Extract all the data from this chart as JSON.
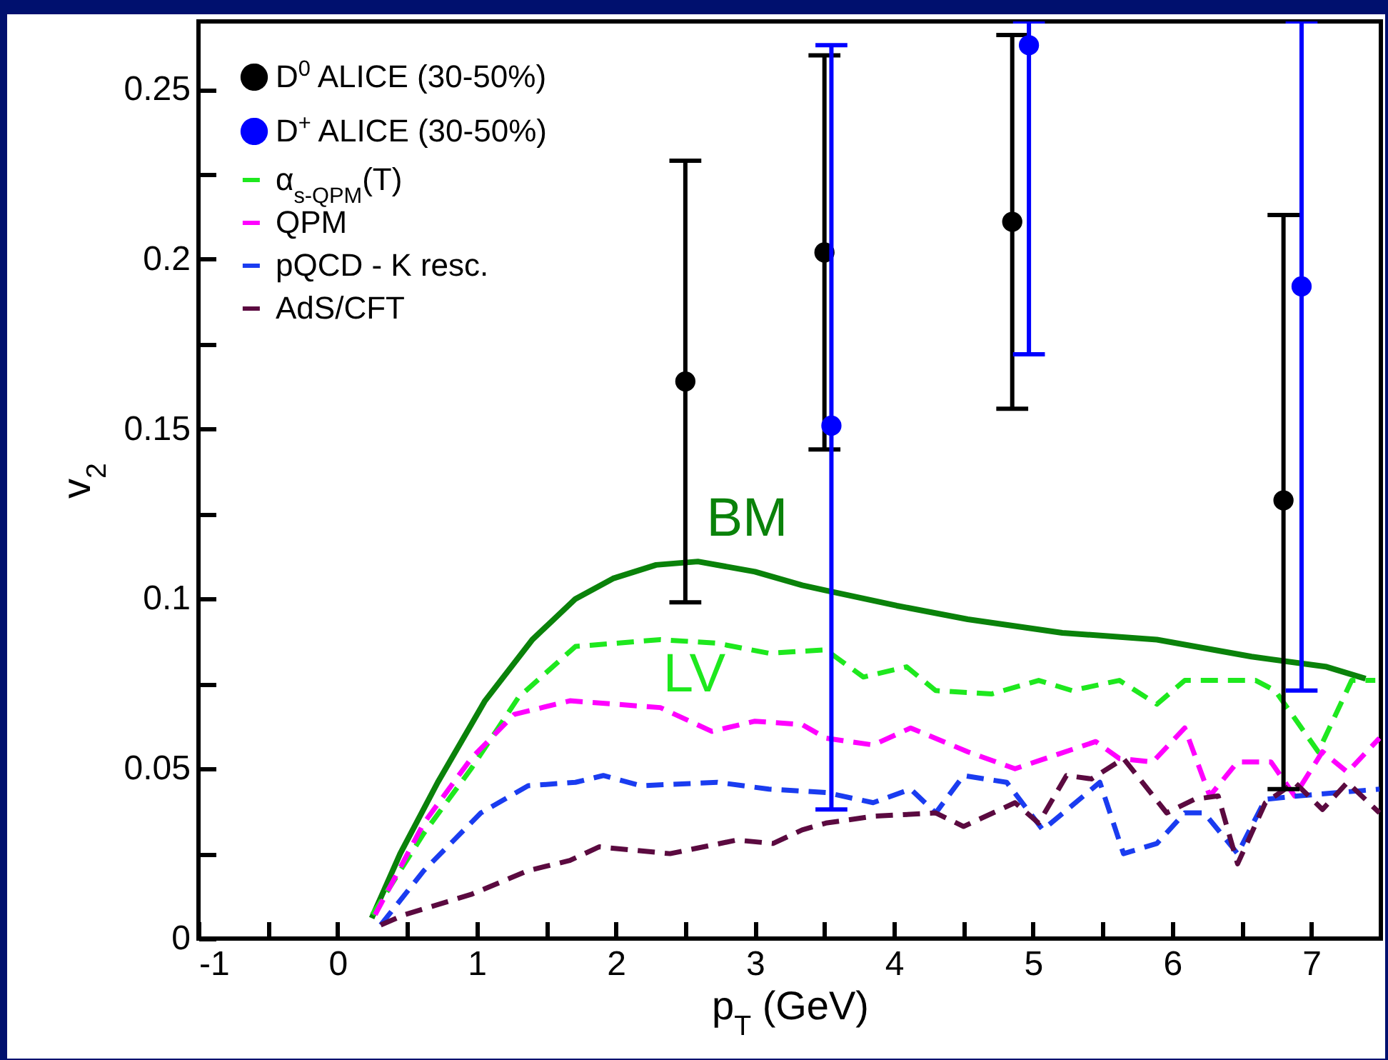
{
  "chart_data": {
    "type": "line",
    "xlabel": "p$_{T}$ (GeV)",
    "ylabel": "v$_{2}$",
    "xlim": [
      -1,
      7.5
    ],
    "xticks": [
      -1,
      {
        "value": -0.5,
        "label": null
      },
      0,
      {
        "value": 0.5,
        "label": null
      },
      1,
      {
        "value": 1.5,
        "label": null
      },
      2,
      {
        "value": 2.5,
        "label": null
      },
      3,
      {
        "value": 3.5,
        "label": null
      },
      4,
      {
        "value": 4.5,
        "label": null
      },
      5,
      {
        "value": 5.5,
        "label": null
      },
      6,
      {
        "value": 6.5,
        "label": null
      },
      7
    ],
    "ylim": [
      0,
      0.27
    ],
    "yticks": [
      0,
      {
        "value": 0.025,
        "label": null
      },
      0.05,
      {
        "value": 0.075,
        "label": null
      },
      0.1,
      {
        "value": 0.125,
        "label": null
      },
      0.15,
      {
        "value": 0.175,
        "label": null
      },
      0.2,
      {
        "value": 0.225,
        "label": null
      },
      0.25
    ],
    "legend": "top left",
    "grid": false,
    "annotations": [
      "BM",
      "LV"
    ],
    "series": [
      {
        "type": "scatter",
        "name": "D$^{0}$ ALICE (30-50%)",
        "color": "#000000",
        "x": [
          2.5,
          3.5,
          4.85,
          6.8
        ],
        "values": [
          0.164,
          0.202,
          0.211,
          0.129
        ],
        "errors": [
          [
            0.099,
            0.229
          ],
          [
            0.144,
            0.26
          ],
          [
            0.156,
            0.266
          ],
          [
            0.044,
            0.213
          ]
        ]
      },
      {
        "type": "scatter",
        "name": "D$^{+}$ ALICE (30-50%)",
        "color": "#0000ff",
        "x": [
          3.55,
          4.97,
          6.93
        ],
        "values": [
          0.151,
          0.263,
          0.192
        ],
        "errors": [
          [
            0.038,
            0.263
          ],
          [
            0.172,
            0.27
          ],
          [
            0.073,
            0.27
          ]
        ]
      },
      {
        "color": "#0a820a",
        "line_style": "solid",
        "x": [
          0.245,
          0.45,
          0.72,
          1.06,
          1.4,
          1.71,
          1.98,
          2.29,
          2.59,
          3.0,
          3.34,
          3.51,
          4.02,
          4.53,
          5.21,
          5.89,
          6.57,
          7.11,
          7.39
        ],
        "values": [
          0.006,
          0.025,
          0.046,
          0.07,
          0.088,
          0.1,
          0.106,
          0.11,
          0.111,
          0.108,
          0.104,
          0.1025,
          0.098,
          0.094,
          0.09,
          0.088,
          0.083,
          0.08,
          0.0765
        ]
      },
      {
        "name": "α$_{s-QPM}$(T)",
        "color": "#1ee81e",
        "line_style": "dashed",
        "x": [
          0.25,
          0.62,
          0.96,
          1.3,
          1.71,
          2.32,
          2.72,
          3.1,
          3.51,
          3.78,
          4.09,
          4.3,
          4.7,
          5.04,
          5.28,
          5.62,
          5.89,
          6.09,
          6.6,
          6.74,
          7.05,
          7.29,
          7.46
        ],
        "values": [
          0.007,
          0.031,
          0.05,
          0.071,
          0.086,
          0.088,
          0.087,
          0.084,
          0.085,
          0.077,
          0.08,
          0.073,
          0.072,
          0.076,
          0.073,
          0.076,
          0.069,
          0.076,
          0.076,
          0.073,
          0.055,
          0.076,
          0.076
        ]
      },
      {
        "name": "QPM",
        "color": "#ff00ff",
        "line_style": "dashed",
        "x": [
          0.27,
          0.62,
          0.96,
          1.27,
          1.67,
          2.32,
          2.69,
          3.0,
          3.34,
          3.51,
          3.85,
          4.12,
          4.53,
          4.87,
          5.45,
          5.62,
          5.86,
          6.09,
          6.27,
          6.47,
          6.71,
          6.88,
          7.08,
          7.26,
          7.49
        ],
        "values": [
          0.007,
          0.034,
          0.053,
          0.066,
          0.07,
          0.068,
          0.061,
          0.064,
          0.063,
          0.059,
          0.057,
          0.062,
          0.055,
          0.05,
          0.058,
          0.053,
          0.052,
          0.062,
          0.042,
          0.052,
          0.052,
          0.042,
          0.055,
          0.049,
          0.059
        ]
      },
      {
        "name": "pQCD - K resc.",
        "color": "#1a3cf0",
        "line_style": "dashed",
        "x": [
          0.31,
          0.62,
          1.03,
          1.37,
          1.71,
          1.91,
          2.18,
          2.73,
          3.1,
          3.51,
          3.85,
          4.12,
          4.3,
          4.5,
          4.81,
          5.07,
          5.48,
          5.65,
          5.89,
          6.09,
          6.23,
          6.47,
          6.67,
          6.91,
          7.49
        ],
        "values": [
          0.004,
          0.02,
          0.037,
          0.045,
          0.046,
          0.048,
          0.045,
          0.046,
          0.044,
          0.043,
          0.04,
          0.044,
          0.037,
          0.048,
          0.046,
          0.032,
          0.046,
          0.025,
          0.028,
          0.037,
          0.037,
          0.025,
          0.041,
          0.042,
          0.044
        ]
      },
      {
        "name": "AdS/CFT",
        "color": "#5b0a40",
        "line_style": "dashed",
        "x": [
          0.31,
          0.48,
          0.96,
          1.37,
          1.67,
          1.88,
          2.39,
          2.87,
          3.13,
          3.34,
          3.51,
          3.85,
          4.3,
          4.5,
          4.87,
          5.04,
          5.24,
          5.42,
          5.65,
          5.96,
          6.16,
          6.33,
          6.47,
          6.67,
          6.88,
          7.08,
          7.26,
          7.49
        ],
        "values": [
          0.004,
          0.007,
          0.013,
          0.02,
          0.023,
          0.027,
          0.025,
          0.029,
          0.028,
          0.032,
          0.034,
          0.036,
          0.037,
          0.033,
          0.04,
          0.034,
          0.048,
          0.047,
          0.053,
          0.037,
          0.041,
          0.042,
          0.022,
          0.04,
          0.046,
          0.038,
          0.046,
          0.037
        ]
      }
    ]
  }
}
